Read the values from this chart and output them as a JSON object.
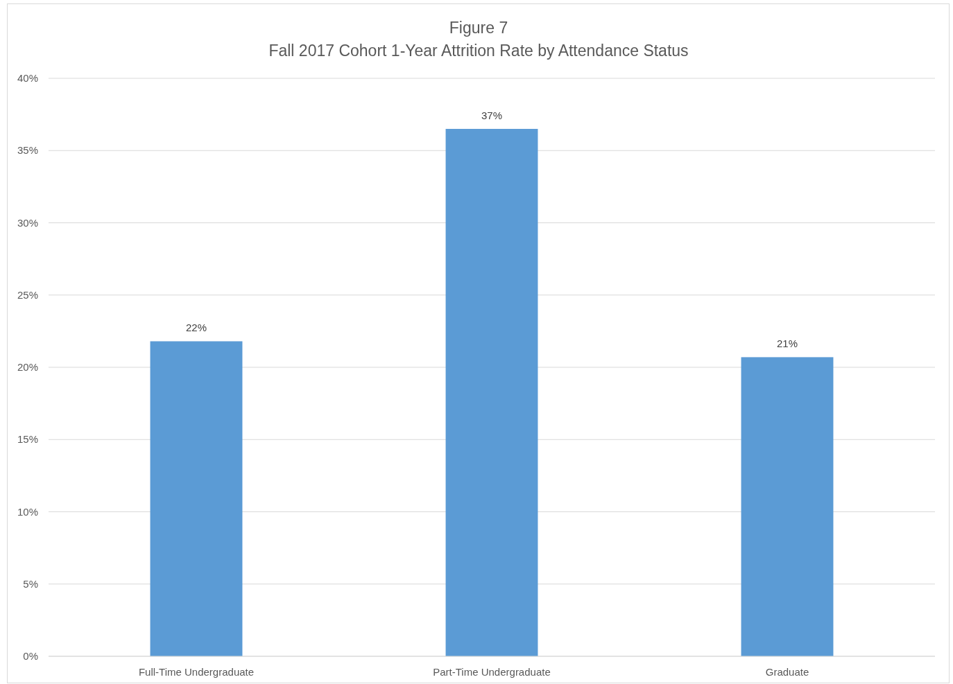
{
  "chart_data": {
    "type": "bar",
    "title": "Figure 7",
    "subtitle": "Fall 2017 Cohort 1-Year Attrition Rate by Attendance Status",
    "categories": [
      "Full-Time Undergraduate",
      "Part-Time Undergraduate",
      "Graduate"
    ],
    "values": [
      21.8,
      36.5,
      20.7
    ],
    "value_labels": [
      "22%",
      "37%",
      "21%"
    ],
    "color": "#5b9bd5",
    "ylim": [
      0,
      40
    ],
    "yticks": [
      {
        "value": 0,
        "label": "0%"
      },
      {
        "value": 5,
        "label": "5%"
      },
      {
        "value": 10,
        "label": "10%"
      },
      {
        "value": 15,
        "label": "15%"
      },
      {
        "value": 20,
        "label": "20%"
      },
      {
        "value": 25,
        "label": "25%"
      },
      {
        "value": 30,
        "label": "30%"
      },
      {
        "value": 35,
        "label": "35%"
      },
      {
        "value": 40,
        "label": "40%"
      }
    ],
    "grid": "y"
  }
}
